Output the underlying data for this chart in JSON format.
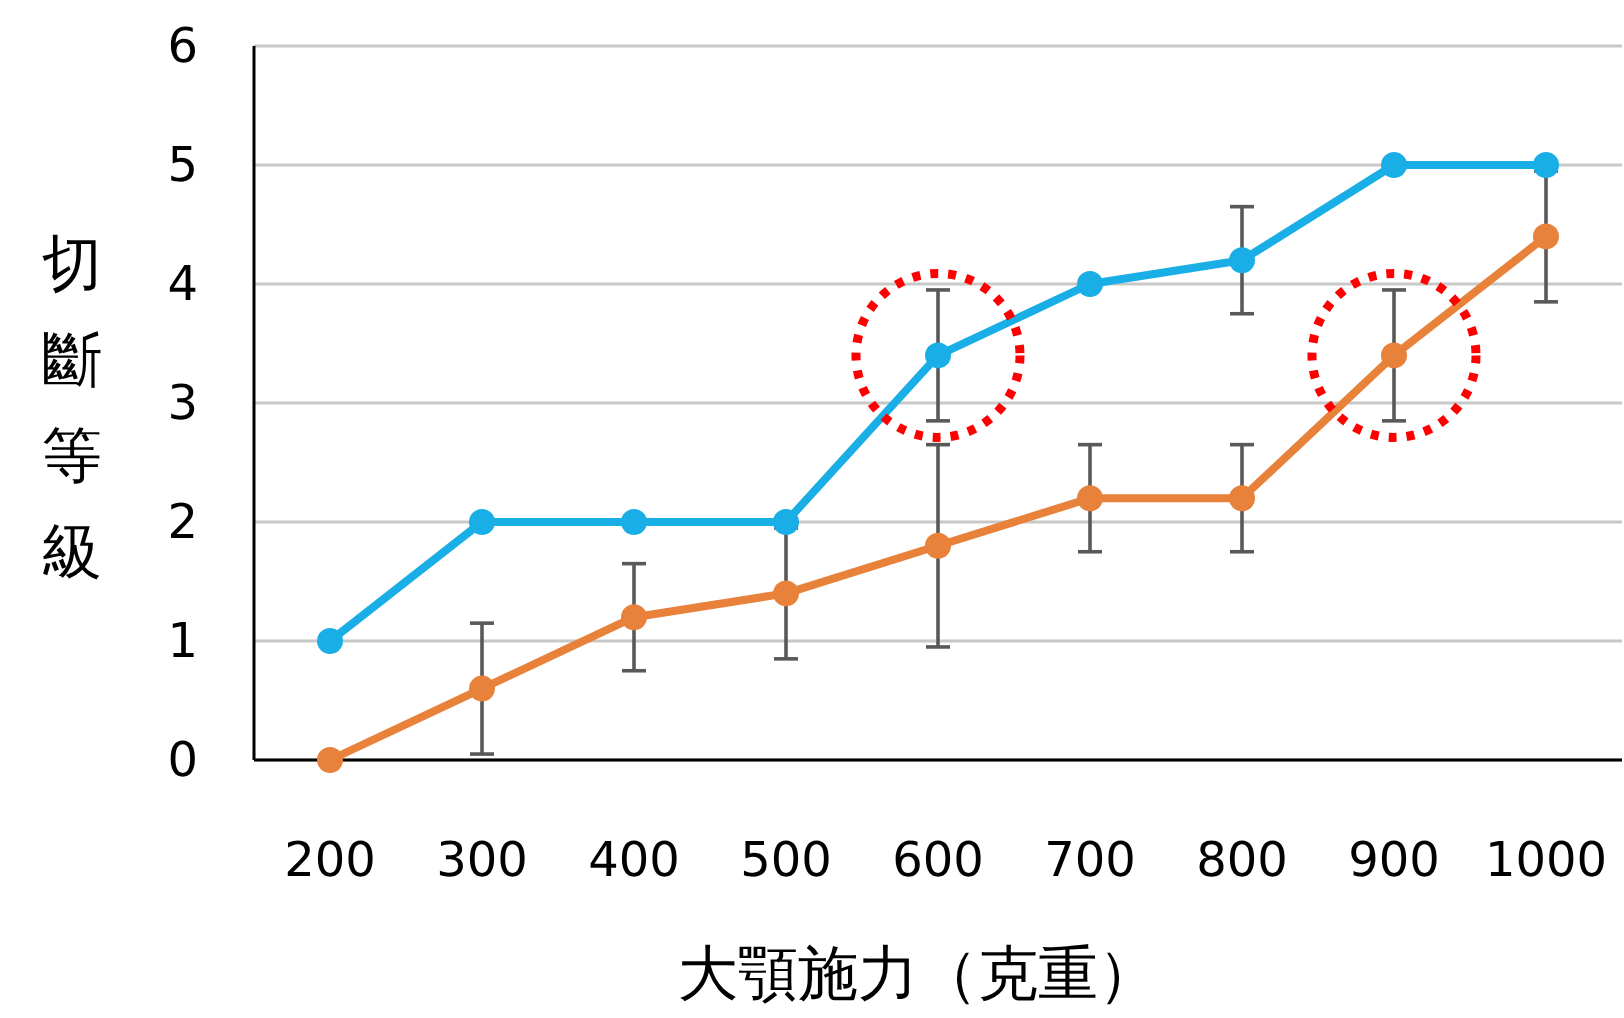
{
  "chart_data": {
    "type": "line",
    "xlabel": "大顎施力（克重）",
    "ylabel": "切斷等級",
    "categories": [
      "200",
      "300",
      "400",
      "500",
      "600",
      "700",
      "800",
      "900",
      "1000"
    ],
    "series": [
      {
        "color": "#1aaee6",
        "values": [
          1,
          2,
          2,
          2,
          3.4,
          4,
          4.2,
          5,
          5
        ],
        "errors": [
          null,
          null,
          null,
          null,
          0.55,
          null,
          0.45,
          null,
          null
        ]
      },
      {
        "color": "#e8823a",
        "values": [
          0,
          0.6,
          1.2,
          1.4,
          1.8,
          2.2,
          2.2,
          3.4,
          4.4
        ],
        "errors": [
          null,
          0.55,
          0.45,
          0.55,
          0.85,
          0.45,
          0.45,
          0.55,
          0.55
        ]
      }
    ],
    "ylim": [
      0,
      6
    ],
    "yticks": [
      0,
      1,
      2,
      3,
      4,
      5,
      6
    ],
    "grid": "y",
    "marker": "circle",
    "line_style": "solid"
  }
}
